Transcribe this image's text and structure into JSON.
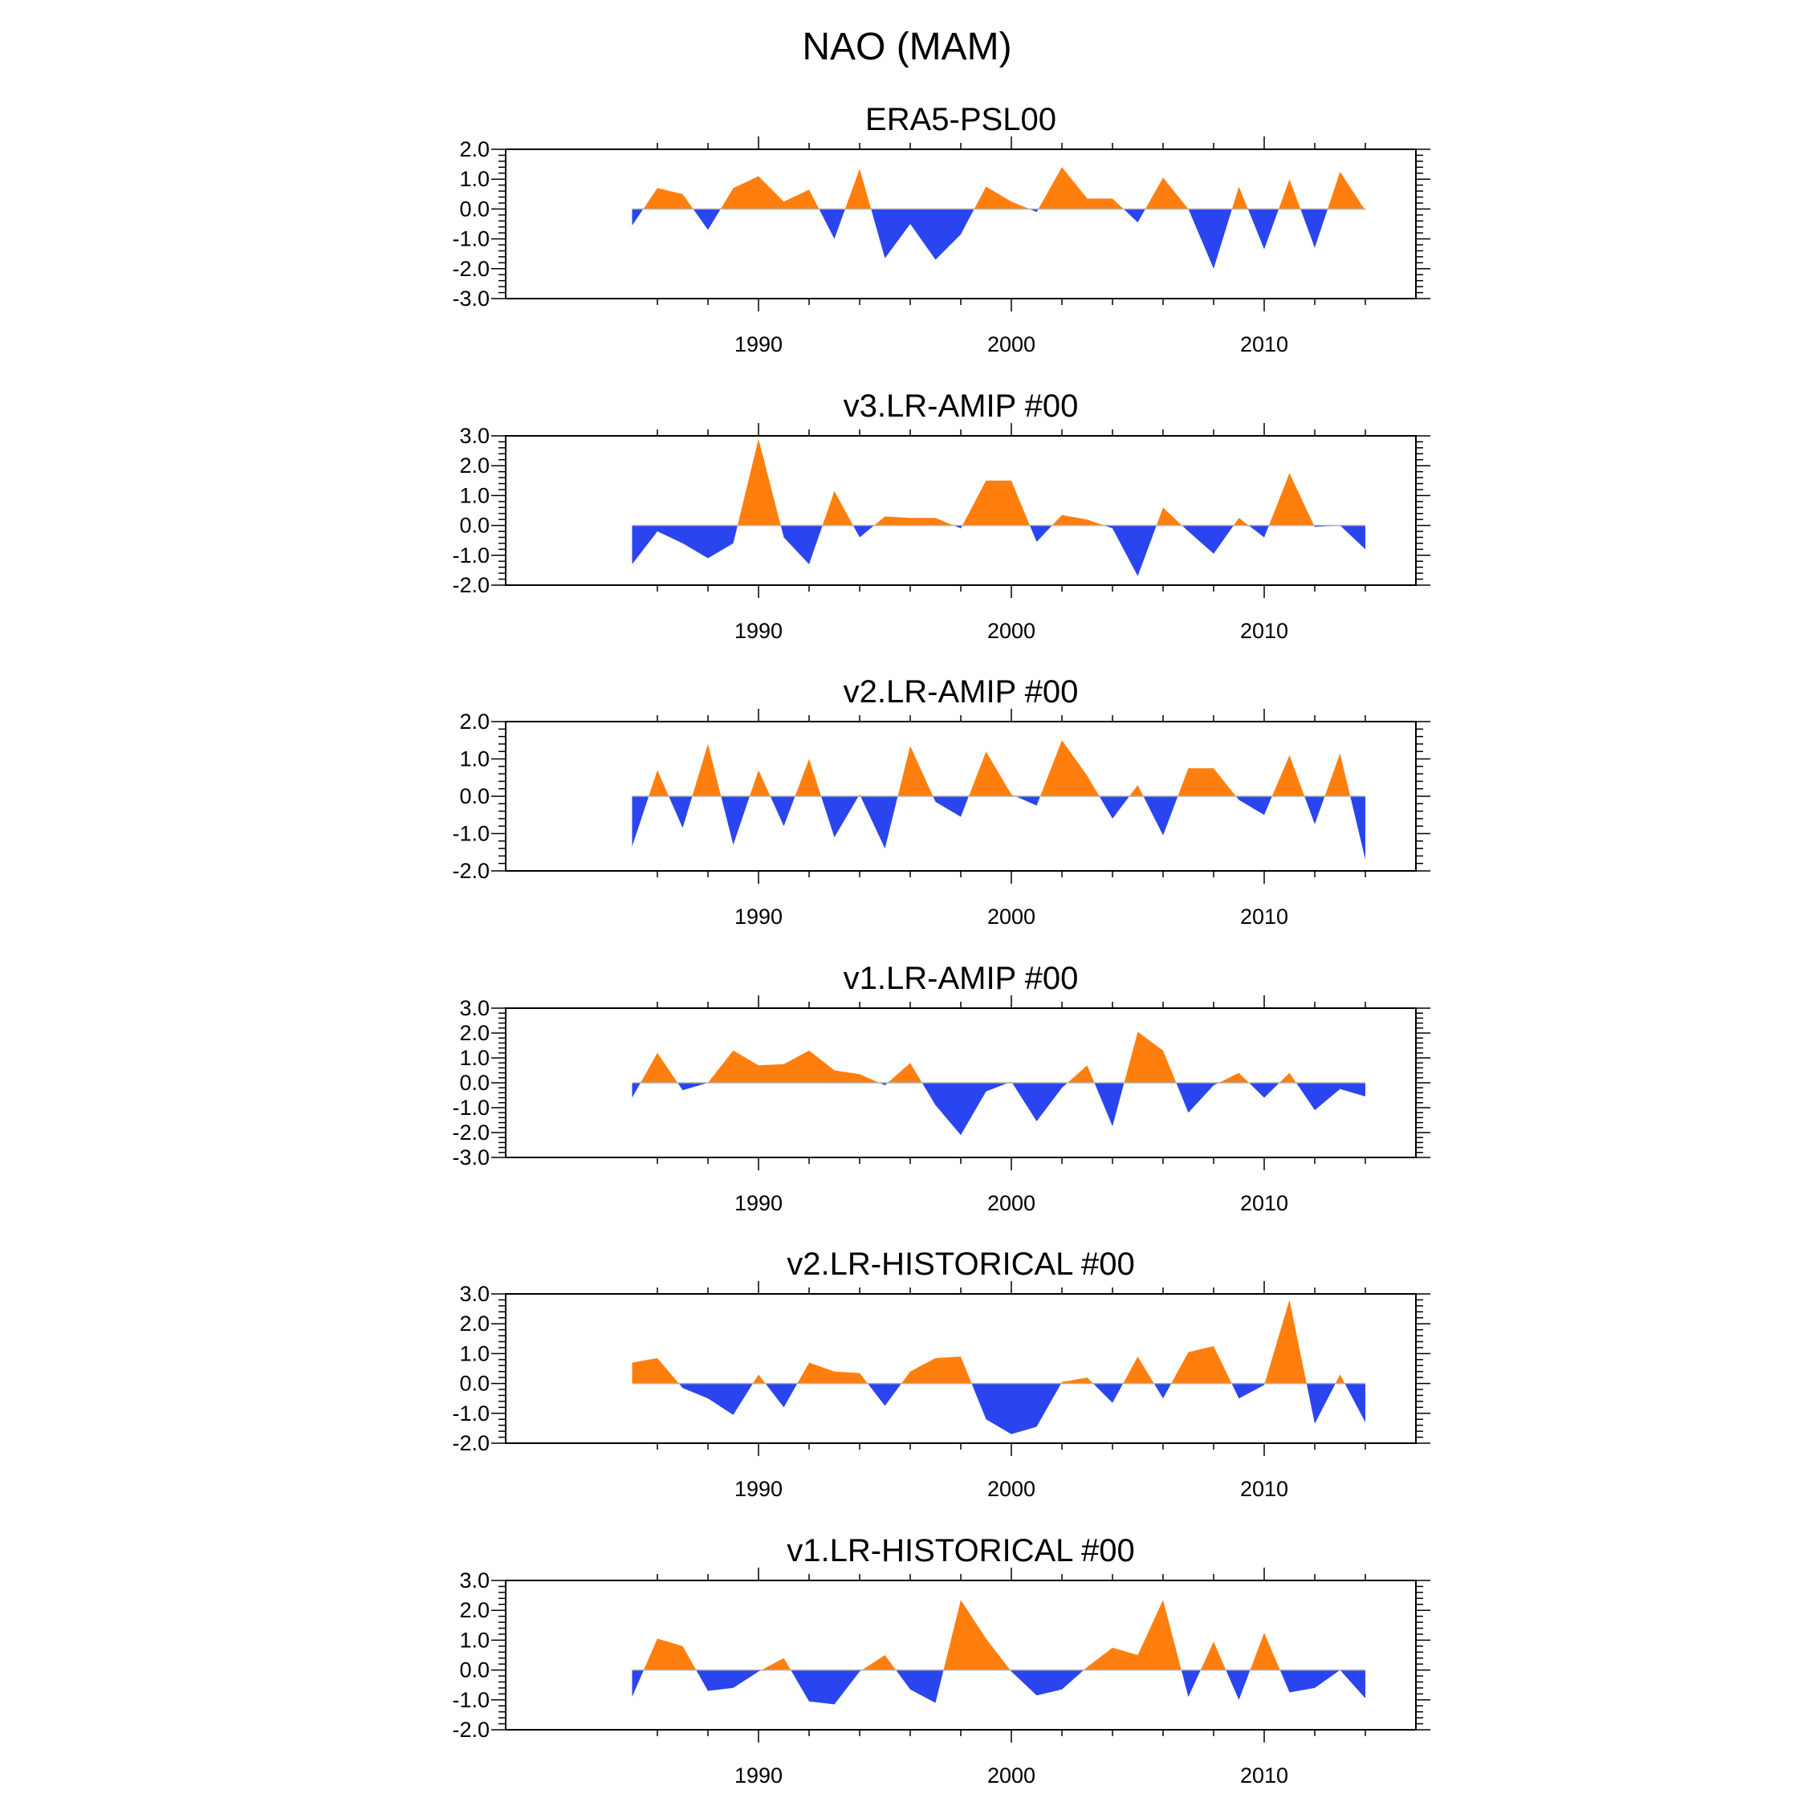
{
  "figure": {
    "title": "NAO (MAM)"
  },
  "colors": {
    "positive": "#ff7f0e",
    "negative": "#2a45f0",
    "axis": "#000000",
    "zero_line": "#b0b0b0"
  },
  "chart_data": [
    {
      "type": "area",
      "title": "ERA5-PSL00",
      "x": [
        1985,
        1986,
        1987,
        1988,
        1989,
        1990,
        1991,
        1992,
        1993,
        1994,
        1995,
        1996,
        1997,
        1998,
        1999,
        2000,
        2001,
        2002,
        2003,
        2004,
        2005,
        2006,
        2007,
        2008,
        2009,
        2010,
        2011,
        2012,
        2013,
        2014
      ],
      "values": [
        -0.55,
        0.7,
        0.5,
        -0.7,
        0.7,
        1.1,
        0.25,
        0.65,
        -1.0,
        1.35,
        -1.65,
        -0.5,
        -1.7,
        -0.85,
        0.75,
        0.25,
        -0.1,
        1.4,
        0.35,
        0.35,
        -0.45,
        1.05,
        0.0,
        -2.0,
        0.75,
        -1.35,
        1.0,
        -1.3,
        1.25,
        -0.05
      ],
      "ylim": [
        -3.0,
        2.0
      ],
      "yticks": [
        -3.0,
        -2.0,
        -1.0,
        0.0,
        1.0,
        2.0
      ],
      "ytick_labels": [
        "-3.0",
        "-2.0",
        "-1.0",
        "0.0",
        "1.0",
        "2.0"
      ],
      "xlim": [
        1980,
        2016
      ],
      "xticks": [
        1990,
        2000,
        2010
      ],
      "xtick_labels": [
        "1990",
        "2000",
        "2010"
      ]
    },
    {
      "type": "area",
      "title": "v3.LR-AMIP  #00",
      "x": [
        1985,
        1986,
        1987,
        1988,
        1989,
        1990,
        1991,
        1992,
        1993,
        1994,
        1995,
        1996,
        1997,
        1998,
        1999,
        2000,
        2001,
        2002,
        2003,
        2004,
        2005,
        2006,
        2007,
        2008,
        2009,
        2010,
        2011,
        2012,
        2013,
        2014
      ],
      "values": [
        -1.3,
        -0.2,
        -0.6,
        -1.1,
        -0.6,
        2.9,
        -0.4,
        -1.3,
        1.15,
        -0.4,
        0.3,
        0.25,
        0.25,
        -0.1,
        1.5,
        1.5,
        -0.55,
        0.35,
        0.2,
        -0.1,
        -1.7,
        0.6,
        -0.2,
        -0.95,
        0.25,
        -0.4,
        1.75,
        -0.05,
        0.0,
        -0.8
      ],
      "ylim": [
        -2.0,
        3.0
      ],
      "yticks": [
        -2.0,
        -1.0,
        0.0,
        1.0,
        2.0,
        3.0
      ],
      "ytick_labels": [
        "-2.0",
        "-1.0",
        "0.0",
        "1.0",
        "2.0",
        "3.0"
      ],
      "xlim": [
        1980,
        2016
      ],
      "xticks": [
        1990,
        2000,
        2010
      ],
      "xtick_labels": [
        "1990",
        "2000",
        "2010"
      ]
    },
    {
      "type": "area",
      "title": "v2.LR-AMIP  #00",
      "x": [
        1985,
        1986,
        1987,
        1988,
        1989,
        1990,
        1991,
        1992,
        1993,
        1994,
        1995,
        1996,
        1997,
        1998,
        1999,
        2000,
        2001,
        2002,
        2003,
        2004,
        2005,
        2006,
        2007,
        2008,
        2009,
        2010,
        2011,
        2012,
        2013,
        2014
      ],
      "values": [
        -1.35,
        0.7,
        -0.85,
        1.4,
        -1.3,
        0.7,
        -0.8,
        1.0,
        -1.1,
        0.05,
        -1.4,
        1.35,
        -0.15,
        -0.55,
        1.2,
        0.05,
        -0.25,
        1.5,
        0.55,
        -0.6,
        0.3,
        -1.05,
        0.75,
        0.75,
        -0.1,
        -0.5,
        1.1,
        -0.75,
        1.15,
        -1.7
      ],
      "ylim": [
        -2.0,
        2.0
      ],
      "yticks": [
        -2.0,
        -1.0,
        0.0,
        1.0,
        2.0
      ],
      "ytick_labels": [
        "-2.0",
        "-1.0",
        "0.0",
        "1.0",
        "2.0"
      ],
      "xlim": [
        1980,
        2016
      ],
      "xticks": [
        1990,
        2000,
        2010
      ],
      "xtick_labels": [
        "1990",
        "2000",
        "2010"
      ]
    },
    {
      "type": "area",
      "title": "v1.LR-AMIP  #00",
      "x": [
        1985,
        1986,
        1987,
        1988,
        1989,
        1990,
        1991,
        1992,
        1993,
        1994,
        1995,
        1996,
        1997,
        1998,
        1999,
        2000,
        2001,
        2002,
        2003,
        2004,
        2005,
        2006,
        2007,
        2008,
        2009,
        2010,
        2011,
        2012,
        2013,
        2014
      ],
      "values": [
        -0.6,
        1.2,
        -0.3,
        0.0,
        1.3,
        0.7,
        0.75,
        1.3,
        0.5,
        0.35,
        -0.1,
        0.8,
        -0.9,
        -2.1,
        -0.35,
        0.05,
        -1.55,
        -0.2,
        0.7,
        -1.75,
        2.05,
        1.3,
        -1.2,
        -0.1,
        0.4,
        -0.6,
        0.4,
        -1.1,
        -0.25,
        -0.55
      ],
      "ylim": [
        -3.0,
        3.0
      ],
      "yticks": [
        -3.0,
        -2.0,
        -1.0,
        0.0,
        1.0,
        2.0,
        3.0
      ],
      "ytick_labels": [
        "-3.0",
        "-2.0",
        "-1.0",
        "0.0",
        "1.0",
        "2.0",
        "3.0"
      ],
      "xlim": [
        1980,
        2016
      ],
      "xticks": [
        1990,
        2000,
        2010
      ],
      "xtick_labels": [
        "1990",
        "2000",
        "2010"
      ]
    },
    {
      "type": "area",
      "title": "v2.LR-HISTORICAL  #00",
      "x": [
        1985,
        1986,
        1987,
        1988,
        1989,
        1990,
        1991,
        1992,
        1993,
        1994,
        1995,
        1996,
        1997,
        1998,
        1999,
        2000,
        2001,
        2002,
        2003,
        2004,
        2005,
        2006,
        2007,
        2008,
        2009,
        2010,
        2011,
        2012,
        2013,
        2014
      ],
      "values": [
        0.7,
        0.85,
        -0.15,
        -0.5,
        -1.05,
        0.3,
        -0.8,
        0.7,
        0.4,
        0.35,
        -0.75,
        0.4,
        0.85,
        0.9,
        -1.2,
        -1.7,
        -1.45,
        0.05,
        0.2,
        -0.65,
        0.9,
        -0.5,
        1.05,
        1.25,
        -0.5,
        -0.05,
        2.8,
        -1.35,
        0.3,
        -1.3
      ],
      "ylim": [
        -2.0,
        3.0
      ],
      "yticks": [
        -2.0,
        -1.0,
        0.0,
        1.0,
        2.0,
        3.0
      ],
      "ytick_labels": [
        "-2.0",
        "-1.0",
        "0.0",
        "1.0",
        "2.0",
        "3.0"
      ],
      "xlim": [
        1980,
        2016
      ],
      "xticks": [
        1990,
        2000,
        2010
      ],
      "xtick_labels": [
        "1990",
        "2000",
        "2010"
      ]
    },
    {
      "type": "area",
      "title": "v1.LR-HISTORICAL  #00",
      "x": [
        1985,
        1986,
        1987,
        1988,
        1989,
        1990,
        1991,
        1992,
        1993,
        1994,
        1995,
        1996,
        1997,
        1998,
        1999,
        2000,
        2001,
        2002,
        2003,
        2004,
        2005,
        2006,
        2007,
        2008,
        2009,
        2010,
        2011,
        2012,
        2013,
        2014
      ],
      "values": [
        -0.9,
        1.05,
        0.8,
        -0.7,
        -0.6,
        -0.05,
        0.4,
        -1.05,
        -1.15,
        -0.05,
        0.5,
        -0.65,
        -1.1,
        2.35,
        1.05,
        -0.05,
        -0.85,
        -0.65,
        0.1,
        0.75,
        0.5,
        2.35,
        -0.9,
        0.95,
        -1.0,
        1.25,
        -0.75,
        -0.6,
        0.0,
        -0.95
      ],
      "ylim": [
        -2.0,
        3.0
      ],
      "yticks": [
        -2.0,
        -1.0,
        0.0,
        1.0,
        2.0,
        3.0
      ],
      "ytick_labels": [
        "-2.0",
        "-1.0",
        "0.0",
        "1.0",
        "2.0",
        "3.0"
      ],
      "xlim": [
        1980,
        2016
      ],
      "xticks": [
        1990,
        2000,
        2010
      ],
      "xtick_labels": [
        "1990",
        "2000",
        "2010"
      ]
    }
  ]
}
